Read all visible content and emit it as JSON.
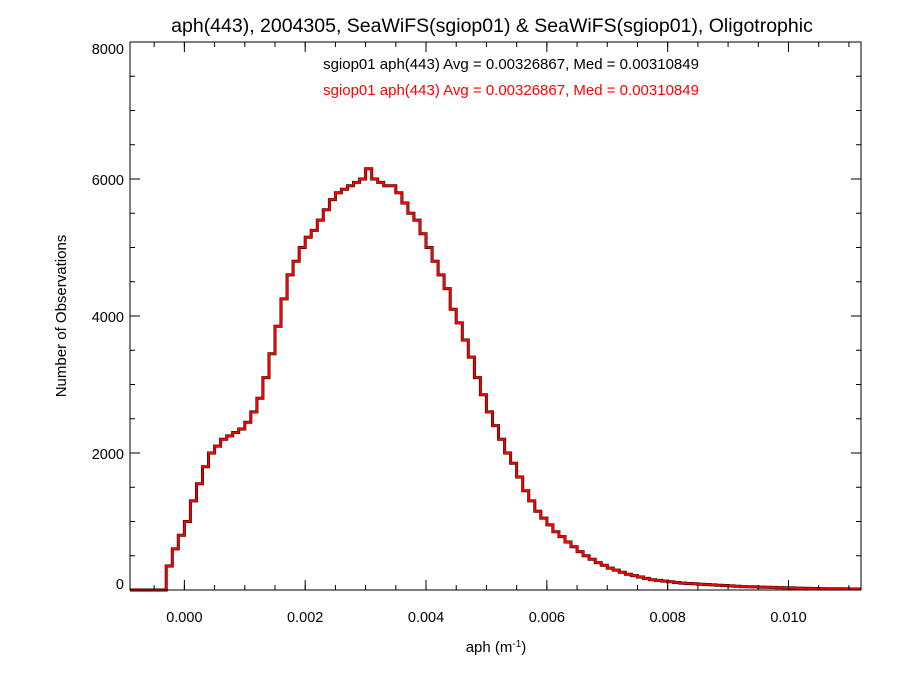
{
  "chart_data": {
    "type": "line",
    "step": true,
    "title": "aph(443), 2004305, SeaWiFS(sgiop01) & SeaWiFS(sgiop01), Oligotrophic",
    "xlabel": "aph (m",
    "xlabel_sup": "-1",
    "xlabel_close": ")",
    "ylabel": "Number of Observations",
    "xlim": [
      -0.0009,
      0.0112
    ],
    "ylim": [
      0,
      8000
    ],
    "x_ticks": [
      0.0,
      0.002,
      0.004,
      0.006,
      0.008,
      0.01
    ],
    "x_tick_labels": [
      "0.000",
      "0.002",
      "0.004",
      "0.006",
      "0.008",
      "0.010"
    ],
    "y_ticks": [
      0,
      2000,
      4000,
      6000,
      8000
    ],
    "y_tick_labels": [
      "0",
      "2000",
      "4000",
      "6000",
      "8000"
    ],
    "x_minor_step": 0.0005,
    "y_minor_step": 500,
    "grid": false,
    "annotations": [
      {
        "text": "sgiop01 aph(443) Avg = 0.00326867, Med = 0.00310849",
        "color": "#000000"
      },
      {
        "text": "sgiop01 aph(443) Avg = 0.00326867, Med = 0.00310849",
        "color": "#ff0000"
      }
    ],
    "series": [
      {
        "color_back": "#000000",
        "color": "#ff0000",
        "points": [
          [
            -0.0009,
            0
          ],
          [
            -0.0004,
            0
          ],
          [
            -0.0003,
            350
          ],
          [
            -0.0002,
            600
          ],
          [
            -0.0001,
            800
          ],
          [
            0.0,
            1000
          ],
          [
            0.0001,
            1300
          ],
          [
            0.0002,
            1550
          ],
          [
            0.0003,
            1800
          ],
          [
            0.0004,
            2000
          ],
          [
            0.0005,
            2100
          ],
          [
            0.0006,
            2200
          ],
          [
            0.0007,
            2250
          ],
          [
            0.0008,
            2300
          ],
          [
            0.0009,
            2350
          ],
          [
            0.001,
            2450
          ],
          [
            0.0011,
            2600
          ],
          [
            0.0012,
            2800
          ],
          [
            0.0013,
            3100
          ],
          [
            0.0014,
            3450
          ],
          [
            0.0015,
            3850
          ],
          [
            0.0016,
            4250
          ],
          [
            0.0017,
            4600
          ],
          [
            0.0018,
            4800
          ],
          [
            0.0019,
            5000
          ],
          [
            0.002,
            5150
          ],
          [
            0.0021,
            5250
          ],
          [
            0.0022,
            5400
          ],
          [
            0.0023,
            5550
          ],
          [
            0.0024,
            5700
          ],
          [
            0.0025,
            5800
          ],
          [
            0.0026,
            5850
          ],
          [
            0.0027,
            5900
          ],
          [
            0.0028,
            5950
          ],
          [
            0.0029,
            6000
          ],
          [
            0.003,
            6150
          ],
          [
            0.0031,
            6000
          ],
          [
            0.0032,
            5950
          ],
          [
            0.0033,
            5900
          ],
          [
            0.0034,
            5900
          ],
          [
            0.0035,
            5800
          ],
          [
            0.0036,
            5650
          ],
          [
            0.0037,
            5500
          ],
          [
            0.0038,
            5400
          ],
          [
            0.0039,
            5200
          ],
          [
            0.004,
            5000
          ],
          [
            0.0041,
            4800
          ],
          [
            0.0042,
            4600
          ],
          [
            0.0043,
            4400
          ],
          [
            0.0044,
            4100
          ],
          [
            0.0045,
            3900
          ],
          [
            0.0046,
            3650
          ],
          [
            0.0047,
            3400
          ],
          [
            0.0048,
            3100
          ],
          [
            0.0049,
            2850
          ],
          [
            0.005,
            2600
          ],
          [
            0.0051,
            2400
          ],
          [
            0.0052,
            2200
          ],
          [
            0.0053,
            2000
          ],
          [
            0.0054,
            1850
          ],
          [
            0.0055,
            1650
          ],
          [
            0.0056,
            1450
          ],
          [
            0.0057,
            1300
          ],
          [
            0.0058,
            1150
          ],
          [
            0.0059,
            1050
          ],
          [
            0.006,
            950
          ],
          [
            0.0061,
            850
          ],
          [
            0.0062,
            780
          ],
          [
            0.0063,
            700
          ],
          [
            0.0064,
            630
          ],
          [
            0.0065,
            560
          ],
          [
            0.0066,
            500
          ],
          [
            0.0067,
            450
          ],
          [
            0.0068,
            400
          ],
          [
            0.0069,
            360
          ],
          [
            0.007,
            320
          ],
          [
            0.0071,
            290
          ],
          [
            0.0072,
            260
          ],
          [
            0.0073,
            230
          ],
          [
            0.0074,
            210
          ],
          [
            0.0075,
            190
          ],
          [
            0.0076,
            170
          ],
          [
            0.0077,
            150
          ],
          [
            0.0078,
            140
          ],
          [
            0.0079,
            130
          ],
          [
            0.008,
            120
          ],
          [
            0.0081,
            110
          ],
          [
            0.0082,
            100
          ],
          [
            0.0083,
            95
          ],
          [
            0.0084,
            90
          ],
          [
            0.0085,
            85
          ],
          [
            0.0086,
            80
          ],
          [
            0.0087,
            75
          ],
          [
            0.0088,
            70
          ],
          [
            0.0089,
            65
          ],
          [
            0.009,
            60
          ],
          [
            0.0091,
            55
          ],
          [
            0.0092,
            50
          ],
          [
            0.0093,
            48
          ],
          [
            0.0094,
            45
          ],
          [
            0.0095,
            42
          ],
          [
            0.0096,
            40
          ],
          [
            0.0097,
            38
          ],
          [
            0.0098,
            35
          ],
          [
            0.0099,
            33
          ],
          [
            0.01,
            30
          ],
          [
            0.0101,
            28
          ],
          [
            0.0102,
            26
          ],
          [
            0.0103,
            24
          ],
          [
            0.0104,
            22
          ],
          [
            0.0105,
            20
          ],
          [
            0.0106,
            19
          ],
          [
            0.0107,
            18
          ],
          [
            0.0108,
            17
          ],
          [
            0.0109,
            16
          ],
          [
            0.011,
            15
          ],
          [
            0.0111,
            14
          ],
          [
            0.0112,
            14
          ]
        ]
      }
    ]
  }
}
